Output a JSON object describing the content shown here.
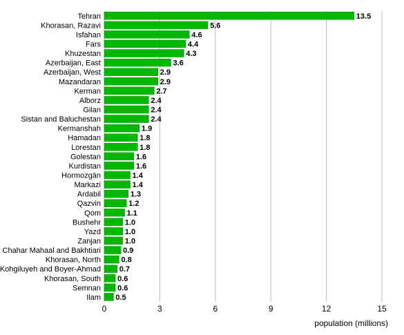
{
  "chart_data": {
    "type": "bar",
    "orientation": "horizontal",
    "categories": [
      "Tehran",
      "Khorasan, Razavi",
      "Isfahan",
      "Fars",
      "Khuzestan",
      "Azerbaijan, East",
      "Azerbaijan, West",
      "Mazandaran",
      "Kerman",
      "Alborz",
      "Gilan",
      "Sistan and Baluchestan",
      "Kermanshah",
      "Hamadan",
      "Lorestan",
      "Golestan",
      "Kurdistan",
      "Hormozgān",
      "Markazi",
      "Ardabil",
      "Qazvin",
      "Qom",
      "Bushehr",
      "Yazd",
      "Zanjan",
      "Chahar Mahaal and Bakhtiari",
      "Khorasan, North",
      "Kohgiluyeh and Boyer-Ahmad",
      "Khorasan, South",
      "Semnan",
      "Ilam"
    ],
    "values": [
      13.5,
      5.6,
      4.6,
      4.4,
      4.3,
      3.6,
      2.9,
      2.9,
      2.7,
      2.4,
      2.4,
      2.4,
      1.9,
      1.8,
      1.8,
      1.6,
      1.6,
      1.4,
      1.4,
      1.3,
      1.2,
      1.1,
      1.0,
      1.0,
      1.0,
      0.9,
      0.8,
      0.7,
      0.6,
      0.6,
      0.5
    ],
    "value_labels": [
      "13.5",
      "5.6",
      "4.6",
      "4.4",
      "4.3",
      "3.6",
      "2.9",
      "2.9",
      "2.7",
      "2.4",
      "2.4",
      "2.4",
      "1.9",
      "1.8",
      "1.8",
      "1.6",
      "1.6",
      "1.4",
      "1.4",
      "1.3",
      "1.2",
      "1.1",
      "1.0",
      "1.0",
      "1.0",
      "0.9",
      "0.8",
      "0.7",
      "0.6",
      "0.6",
      "0.5"
    ],
    "title": "",
    "xlabel": "population (millions)",
    "ylabel": "",
    "xlim": [
      0,
      15
    ],
    "xticks": [
      0,
      3,
      6,
      9,
      12,
      15
    ],
    "grid": "vertical",
    "legend": "none",
    "colors": {
      "bar": "#00b800",
      "bar_stroke": "#009a00",
      "grid": "#bbbbbb"
    }
  }
}
